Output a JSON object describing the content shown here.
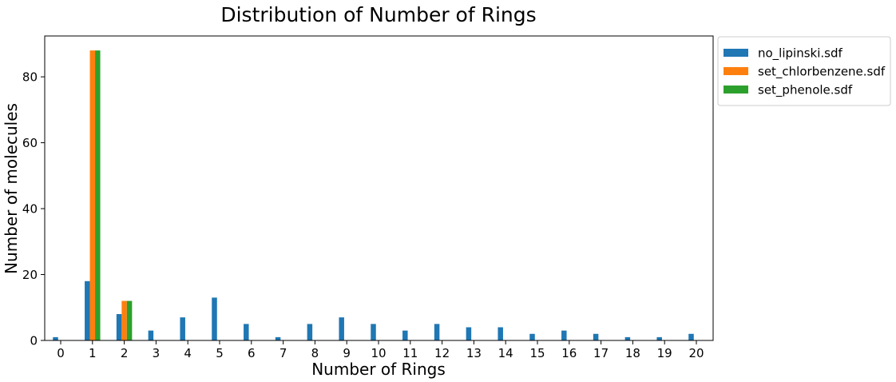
{
  "chart_data": {
    "type": "bar",
    "title": "Distribution of Number of Rings",
    "xlabel": "Number of Rings",
    "ylabel": "Number of molecules",
    "categories": [
      "0",
      "1",
      "2",
      "3",
      "4",
      "5",
      "6",
      "7",
      "8",
      "9",
      "10",
      "11",
      "12",
      "13",
      "14",
      "15",
      "16",
      "17",
      "18",
      "19",
      "20"
    ],
    "ylim": [
      0,
      92.4
    ],
    "yticks": [
      0,
      20,
      40,
      60,
      80
    ],
    "grid": false,
    "legend_position": "outside-top-right",
    "series": [
      {
        "name": "no_lipinski.sdf",
        "color": "#1f77b4",
        "values": [
          1,
          18,
          8,
          3,
          7,
          13,
          5,
          1,
          5,
          7,
          5,
          3,
          5,
          4,
          4,
          2,
          3,
          2,
          1,
          1,
          2
        ]
      },
      {
        "name": "set_chlorbenzene.sdf",
        "color": "#ff7f0e",
        "values": [
          0,
          88,
          12,
          0,
          0,
          0,
          0,
          0,
          0,
          0,
          0,
          0,
          0,
          0,
          0,
          0,
          0,
          0,
          0,
          0,
          0
        ]
      },
      {
        "name": "set_phenole.sdf",
        "color": "#2ca02c",
        "values": [
          0,
          88,
          12,
          0,
          0,
          0,
          0,
          0,
          0,
          0,
          0,
          0,
          0,
          0,
          0,
          0,
          0,
          0,
          0,
          0,
          0
        ]
      }
    ]
  }
}
